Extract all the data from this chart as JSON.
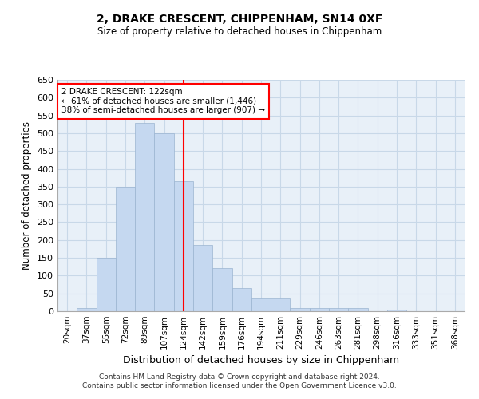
{
  "title": "2, DRAKE CRESCENT, CHIPPENHAM, SN14 0XF",
  "subtitle": "Size of property relative to detached houses in Chippenham",
  "xlabel": "Distribution of detached houses by size in Chippenham",
  "ylabel": "Number of detached properties",
  "categories": [
    "20sqm",
    "37sqm",
    "55sqm",
    "72sqm",
    "89sqm",
    "107sqm",
    "124sqm",
    "142sqm",
    "159sqm",
    "176sqm",
    "194sqm",
    "211sqm",
    "229sqm",
    "246sqm",
    "263sqm",
    "281sqm",
    "298sqm",
    "316sqm",
    "333sqm",
    "351sqm",
    "368sqm"
  ],
  "values": [
    0,
    10,
    150,
    350,
    530,
    500,
    365,
    185,
    120,
    65,
    35,
    35,
    10,
    10,
    10,
    10,
    0,
    5,
    0,
    0,
    0
  ],
  "bar_color": "#c5d8f0",
  "bar_edge_color": "#9ab4d0",
  "vline_color": "red",
  "vline_x": 6.5,
  "grid_color": "#c8d8e8",
  "background_color": "#e8f0f8",
  "ylim": [
    0,
    650
  ],
  "yticks": [
    0,
    50,
    100,
    150,
    200,
    250,
    300,
    350,
    400,
    450,
    500,
    550,
    600,
    650
  ],
  "property_label": "2 DRAKE CRESCENT: 122sqm",
  "annotation_line1": "← 61% of detached houses are smaller (1,446)",
  "annotation_line2": "38% of semi-detached houses are larger (907) →",
  "annotation_box_color": "white",
  "annotation_border_color": "red",
  "footer_line1": "Contains HM Land Registry data © Crown copyright and database right 2024.",
  "footer_line2": "Contains public sector information licensed under the Open Government Licence v3.0."
}
